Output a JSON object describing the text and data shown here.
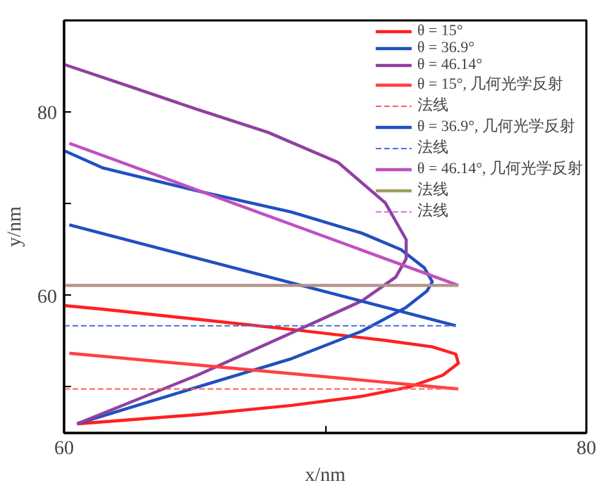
{
  "chart_data": {
    "type": "line",
    "xlabel": "x/nm",
    "ylabel": "y/nm",
    "xlim": [
      60,
      80
    ],
    "ylim": [
      45,
      90
    ],
    "xticks": [
      60,
      {
        "value": 70,
        "label": null
      },
      80
    ],
    "yticks": [
      {
        "value": 50,
        "label": null
      },
      60,
      {
        "value": 70,
        "label": null
      },
      80
    ],
    "grid": false,
    "legend": "top right",
    "marker": "none",
    "series": [
      {
        "name": "θ = 15°",
        "color": "#ff2020",
        "line_style": "solid",
        "x": [
          60.5,
          65.1,
          68.7,
          71.4,
          73.2,
          74.5,
          75.1,
          75.0,
          74.1,
          72.3,
          68.7,
          65.1,
          61.5,
          60.0
        ],
        "values": [
          46.0,
          47.0,
          48.0,
          49.0,
          50.0,
          51.3,
          52.6,
          53.6,
          54.4,
          55.1,
          56.3,
          57.4,
          58.5,
          58.9
        ]
      },
      {
        "name": "θ = 36.9°",
        "color": "#2050c0",
        "line_style": "solid",
        "x": [
          60.5,
          65.1,
          68.7,
          71.4,
          73.1,
          73.9,
          74.1,
          73.8,
          72.9,
          71.4,
          68.7,
          65.1,
          61.5,
          60.0
        ],
        "values": [
          46.0,
          50.0,
          53.1,
          56.1,
          58.7,
          60.5,
          61.5,
          63.0,
          65.0,
          66.8,
          69.1,
          71.4,
          73.9,
          75.8
        ]
      },
      {
        "name": "θ = 46.14°",
        "color": "#9040a0",
        "line_style": "solid",
        "x": [
          60.5,
          65.1,
          68.7,
          71.4,
          72.7,
          73.1,
          73.1,
          72.3,
          70.5,
          67.8,
          65.1,
          62.4,
          60.0
        ],
        "values": [
          46.0,
          51.3,
          55.9,
          59.4,
          62.0,
          64.0,
          66.1,
          70.1,
          74.5,
          77.8,
          80.3,
          82.9,
          85.2
        ]
      },
      {
        "name": "θ = 15°, 几何光学反射",
        "color": "#ff4040",
        "line_style": "solid",
        "x": [
          60.2,
          75.1
        ],
        "values": [
          53.7,
          49.8
        ]
      },
      {
        "name": "法线",
        "color": "#ff6060",
        "line_style": "dashed",
        "x": [
          60.0,
          75.1
        ],
        "values": [
          49.8,
          49.8
        ]
      },
      {
        "name": "θ = 36.9°, 几何光学反射",
        "color": "#2050c0",
        "line_style": "solid",
        "x": [
          60.2,
          75.0
        ],
        "values": [
          67.7,
          56.7
        ]
      },
      {
        "name": "法线",
        "color": "#5070d0",
        "line_style": "dashed",
        "x": [
          60.0,
          75.0
        ],
        "values": [
          56.7,
          56.7
        ]
      },
      {
        "name": "θ = 46.14°, 几何光学反射",
        "color": "#c050c0",
        "line_style": "solid",
        "x": [
          60.2,
          75.1
        ],
        "values": [
          76.6,
          61.1
        ]
      },
      {
        "name": "法线",
        "color": "#a0a060",
        "line_style": "solid",
        "x": [
          60.0,
          75.1
        ],
        "values": [
          61.1,
          61.1
        ]
      },
      {
        "name": "法线",
        "color": "#e070e0",
        "line_style": "dashed",
        "x": [
          60.0,
          75.1
        ],
        "values": [
          61.1,
          61.1
        ]
      }
    ]
  }
}
